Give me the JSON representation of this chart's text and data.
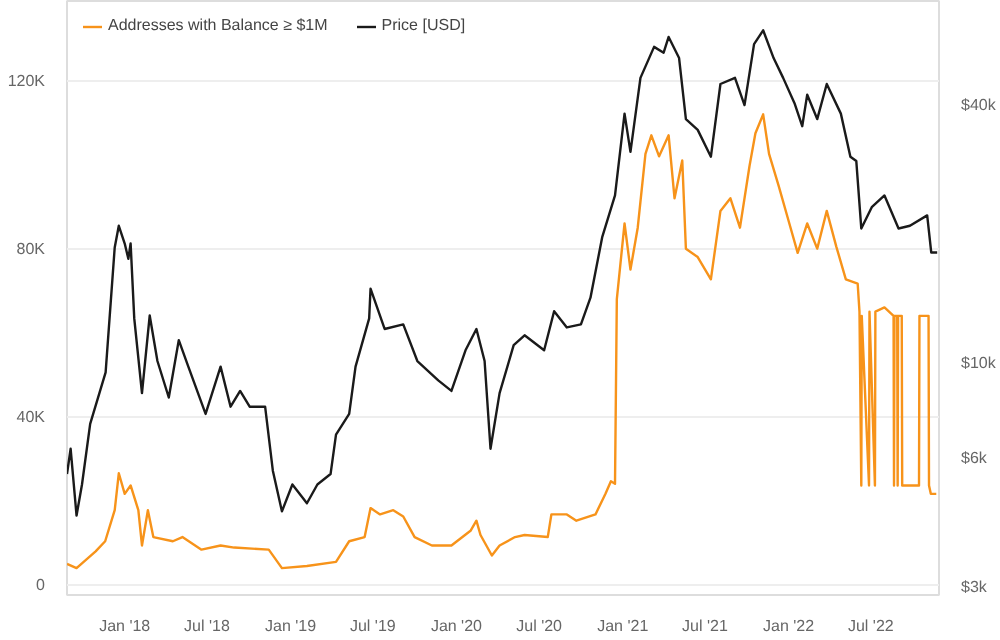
{
  "chart_data": {
    "type": "line",
    "legend": "top left",
    "grid": "y",
    "log": "y2",
    "line_style": "solid",
    "xlim": [
      "2017-08-27",
      "2022-11-28"
    ],
    "xticks": [
      {
        "value": "2018-01-01",
        "label": "Jan '18"
      },
      {
        "value": "2018-07-01",
        "label": "Jul '18"
      },
      {
        "value": "2019-01-01",
        "label": "Jan '19"
      },
      {
        "value": "2019-07-01",
        "label": "Jul '19"
      },
      {
        "value": "2020-01-01",
        "label": "Jan '20"
      },
      {
        "value": "2020-07-01",
        "label": "Jul '20"
      },
      {
        "value": "2021-01-01",
        "label": "Jan '21"
      },
      {
        "value": "2021-07-01",
        "label": "Jul '21"
      },
      {
        "value": "2022-01-01",
        "label": "Jan '22"
      },
      {
        "value": "2022-07-01",
        "label": "Jul '22"
      }
    ],
    "ylim": [
      -2500,
      139000
    ],
    "yticks": [
      0,
      {
        "value": 40000,
        "label": "40K"
      },
      {
        "value": 80000,
        "label": "80K"
      },
      {
        "value": 120000,
        "label": "120K"
      }
    ],
    "y2lim": [
      2870,
      70000
    ],
    "y2ticks": [
      {
        "value": 3000,
        "label": "$3k"
      },
      {
        "value": 6000,
        "label": "$6k"
      },
      {
        "value": 10000,
        "label": "$10k"
      },
      {
        "value": 40000,
        "label": "$40k"
      }
    ],
    "series": [
      {
        "name": "Addresses with Balance ≥ $1M",
        "color": "#f7931a",
        "x": [
          "2017-08-27",
          "2017-09-17",
          "2017-10-29",
          "2017-11-19",
          "2017-12-10",
          "2017-12-19",
          "2018-01-01",
          "2018-01-14",
          "2018-01-31",
          "2018-02-08",
          "2018-02-21",
          "2018-03-05",
          "2018-04-17",
          "2018-05-08",
          "2018-06-19",
          "2018-07-31",
          "2018-08-30",
          "2018-11-14",
          "2018-12-13",
          "2019-02-06",
          "2019-04-11",
          "2019-05-10",
          "2019-06-13",
          "2019-06-26",
          "2019-07-17",
          "2019-08-15",
          "2019-09-06",
          "2019-10-01",
          "2019-11-08",
          "2019-12-21",
          "2020-02-01",
          "2020-02-14",
          "2020-02-23",
          "2020-03-19",
          "2020-04-05",
          "2020-05-09",
          "2020-05-30",
          "2020-07-20",
          "2020-07-28",
          "2020-08-31",
          "2020-09-21",
          "2020-11-02",
          "2020-11-24",
          "2020-12-06",
          "2020-12-15",
          "2020-12-19",
          "2021-01-05",
          "2021-01-18",
          "2021-02-03",
          "2021-02-20",
          "2021-03-05",
          "2021-03-22",
          "2021-04-12",
          "2021-04-25",
          "2021-05-12",
          "2021-05-20",
          "2021-06-15",
          "2021-07-14",
          "2021-08-04",
          "2021-08-26",
          "2021-09-16",
          "2021-10-07",
          "2021-10-20",
          "2021-11-06",
          "2021-11-19",
          "2021-12-10",
          "2021-12-31",
          "2022-01-21",
          "2022-02-11",
          "2022-03-05",
          "2022-03-26",
          "2022-04-16",
          "2022-05-07",
          "2022-06-02",
          "2022-06-06",
          "2022-06-10",
          "2022-06-11",
          "2022-06-27",
          "2022-06-28",
          "2022-07-10",
          "2022-07-11",
          "2022-07-31",
          "2022-08-20",
          "2022-08-21",
          "2022-08-22",
          "2022-08-28",
          "2022-08-29",
          "2022-08-30",
          "2022-09-07",
          "2022-09-08",
          "2022-10-15",
          "2022-10-16",
          "2022-11-05",
          "2022-11-06",
          "2022-11-10",
          "2022-11-22"
        ],
        "values": [
          4900,
          3900,
          7900,
          10300,
          17700,
          26500,
          21600,
          23600,
          17700,
          9300,
          17700,
          11300,
          10300,
          11300,
          8300,
          9300,
          8800,
          8300,
          3900,
          4400,
          5400,
          10300,
          11300,
          18200,
          16700,
          17700,
          16200,
          11300,
          9300,
          9300,
          12800,
          15200,
          11800,
          6900,
          9300,
          11300,
          11800,
          11300,
          16700,
          16700,
          15200,
          16700,
          21600,
          24600,
          24000,
          68000,
          86000,
          75000,
          85000,
          102600,
          107000,
          102000,
          107000,
          92000,
          101000,
          80000,
          78000,
          72700,
          89000,
          92000,
          85000,
          99700,
          107500,
          112000,
          102600,
          95000,
          87000,
          79000,
          86000,
          80000,
          89000,
          80500,
          72700,
          71700,
          65000,
          23600,
          64000,
          23600,
          65000,
          23600,
          65000,
          66000,
          64000,
          23600,
          64000,
          64000,
          23600,
          64000,
          64000,
          23600,
          23600,
          64000,
          64000,
          23600,
          21600,
          21600
        ]
      },
      {
        "name": "Price [USD]",
        "color": "#1a1a1a",
        "axis": "y2",
        "x": [
          "2017-08-27",
          "2017-09-04",
          "2017-09-17",
          "2017-09-29",
          "2017-10-17",
          "2017-11-20",
          "2017-12-10",
          "2017-12-19",
          "2018-01-01",
          "2018-01-09",
          "2018-01-14",
          "2018-01-22",
          "2018-02-08",
          "2018-02-25",
          "2018-03-14",
          "2018-04-08",
          "2018-04-30",
          "2018-05-21",
          "2018-06-28",
          "2018-07-31",
          "2018-08-22",
          "2018-09-12",
          "2018-10-03",
          "2018-11-06",
          "2018-11-23",
          "2018-12-13",
          "2019-01-05",
          "2019-02-06",
          "2019-03-01",
          "2019-03-30",
          "2019-04-11",
          "2019-05-10",
          "2019-05-24",
          "2019-06-23",
          "2019-06-26",
          "2019-07-27",
          "2019-09-06",
          "2019-10-07",
          "2019-11-22",
          "2019-12-21",
          "2020-01-21",
          "2020-02-14",
          "2020-03-03",
          "2020-03-16",
          "2020-04-05",
          "2020-05-06",
          "2020-05-30",
          "2020-07-12",
          "2020-08-03",
          "2020-08-31",
          "2020-10-01",
          "2020-10-22",
          "2020-11-17",
          "2020-12-15",
          "2021-01-05",
          "2021-01-18",
          "2021-02-09",
          "2021-03-11",
          "2021-04-01",
          "2021-04-12",
          "2021-05-05",
          "2021-05-20",
          "2021-06-15",
          "2021-07-14",
          "2021-08-04",
          "2021-09-05",
          "2021-09-26",
          "2021-10-17",
          "2021-11-06",
          "2021-11-29",
          "2021-12-20",
          "2022-01-14",
          "2022-01-31",
          "2022-02-11",
          "2022-03-05",
          "2022-03-26",
          "2022-04-26",
          "2022-05-17",
          "2022-05-30",
          "2022-06-10",
          "2022-07-03",
          "2022-07-31",
          "2022-08-31",
          "2022-09-25",
          "2022-11-02",
          "2022-11-11",
          "2022-11-24"
        ],
        "values": [
          5500,
          6300,
          4400,
          5200,
          7200,
          9500,
          18600,
          20900,
          19000,
          17500,
          19000,
          12700,
          8500,
          12900,
          10100,
          8300,
          11300,
          9800,
          7600,
          9800,
          7900,
          8600,
          7900,
          7900,
          5600,
          4500,
          5200,
          4700,
          5200,
          5500,
          6800,
          7600,
          9800,
          12700,
          14900,
          12000,
          12300,
          10100,
          9100,
          8600,
          10700,
          12000,
          10100,
          6300,
          8500,
          11000,
          11600,
          10700,
          13200,
          12100,
          12300,
          14200,
          19700,
          24600,
          38200,
          31100,
          46300,
          54700,
          53000,
          57700,
          51500,
          37100,
          35000,
          30300,
          44800,
          46300,
          40000,
          55500,
          59800,
          51500,
          46300,
          40400,
          35700,
          42300,
          37100,
          44800,
          38200,
          30300,
          29600,
          20600,
          23100,
          24600,
          20600,
          20900,
          22100,
          18100,
          18100
        ]
      }
    ]
  }
}
